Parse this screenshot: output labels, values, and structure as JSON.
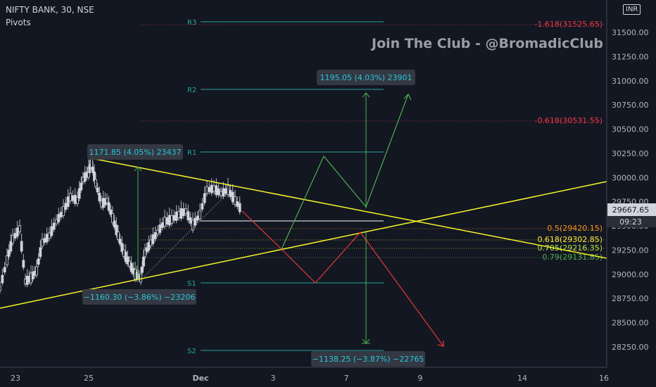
{
  "header": {
    "symbol_line": "NIFTY BANK, 30, NSE",
    "indicator_line": "Pivots",
    "watermark": "Join The Club - @BromadicClub",
    "currency": "INR"
  },
  "price_tag": {
    "value": "29667.65",
    "timer": "09:23"
  },
  "chart_data": {
    "type": "line",
    "y_ticks": [
      "31500.00",
      "31250.00",
      "31000.00",
      "30750.00",
      "30500.00",
      "30250.00",
      "30000.00",
      "29750.00",
      "29500.00",
      "29250.00",
      "29000.00",
      "28750.00",
      "28500.00",
      "28250.00"
    ],
    "x_ticks": [
      "23",
      "25",
      "Dec",
      "3",
      "7",
      "9",
      "14",
      "16"
    ],
    "pivots": [
      {
        "label": "R3",
        "value": 31600
      },
      {
        "label": "R2",
        "value": 30900
      },
      {
        "label": "R1",
        "value": 30250
      },
      {
        "label": "S1",
        "value": 28910
      },
      {
        "label": "S2",
        "value": 28210
      }
    ],
    "fib_levels": [
      {
        "label": "-1.618(31525.65)",
        "value": 31525.65,
        "color": "#f23645"
      },
      {
        "label": "-0.618(30531.55)",
        "value": 30531.55,
        "color": "#f23645"
      },
      {
        "label": "0.5(29420.15)",
        "value": 29420.15,
        "color": "#f7931a"
      },
      {
        "label": "0.618(29302.85)",
        "value": 29302.85,
        "color": "#ffeb3b"
      },
      {
        "label": "0.705(29216.35)",
        "value": 29216.35,
        "color": "#b8e04a"
      },
      {
        "label": "0.79(29131.85)",
        "value": 29131.85,
        "color": "#4caf50"
      }
    ],
    "callouts": [
      {
        "text": "1171.85 (4.05%) 23437"
      },
      {
        "text": "−1160.30 (−3.86%) −23206"
      },
      {
        "text": "1195.05 (4.03%) 23901"
      },
      {
        "text": "−1138.25 (−3.87%) −22765"
      }
    ]
  }
}
